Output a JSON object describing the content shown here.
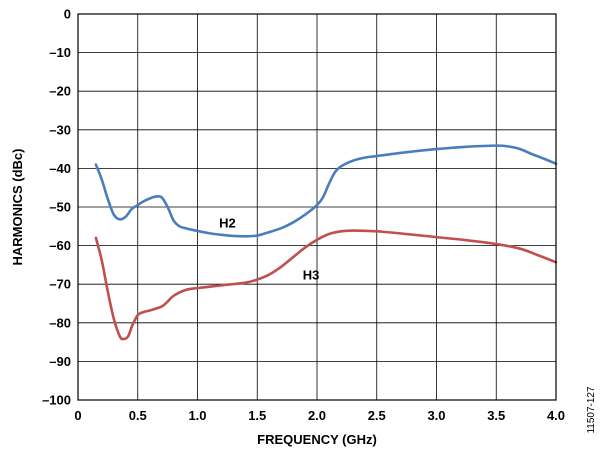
{
  "chart_data": {
    "type": "line",
    "xlabel": "FREQUENCY (GHz)",
    "ylabel": "HARMONICS (dBc)",
    "xlim": [
      0,
      4.0
    ],
    "ylim": [
      -100,
      0
    ],
    "x_ticks": [
      {
        "value": 0,
        "label": "0"
      },
      {
        "value": 0.5,
        "label": "0.5"
      },
      {
        "value": 1.0,
        "label": "1.0"
      },
      {
        "value": 1.5,
        "label": "1.5"
      },
      {
        "value": 2.0,
        "label": "2.0"
      },
      {
        "value": 2.5,
        "label": "2.5"
      },
      {
        "value": 3.0,
        "label": "3.0"
      },
      {
        "value": 3.5,
        "label": "3.5"
      },
      {
        "value": 4.0,
        "label": "4.0"
      }
    ],
    "y_ticks": [
      {
        "value": 0,
        "label": "0"
      },
      {
        "value": -10,
        "label": "–10"
      },
      {
        "value": -20,
        "label": "–20"
      },
      {
        "value": -30,
        "label": "–30"
      },
      {
        "value": -40,
        "label": "–40"
      },
      {
        "value": -50,
        "label": "–50"
      },
      {
        "value": -60,
        "label": "–60"
      },
      {
        "value": -70,
        "label": "–70"
      },
      {
        "value": -80,
        "label": "–80"
      },
      {
        "value": -90,
        "label": "–90"
      },
      {
        "value": -100,
        "label": "–100"
      }
    ],
    "grid": true,
    "legend": "none",
    "series": [
      {
        "name": "H2",
        "color": "#4a7ebb",
        "label_at": {
          "x": 1.25,
          "y": -54
        },
        "points": [
          [
            0.15,
            -39
          ],
          [
            0.2,
            -43
          ],
          [
            0.25,
            -48
          ],
          [
            0.3,
            -52
          ],
          [
            0.35,
            -53.2
          ],
          [
            0.4,
            -52.5
          ],
          [
            0.45,
            -50.5
          ],
          [
            0.5,
            -49.5
          ],
          [
            0.55,
            -48.5
          ],
          [
            0.6,
            -47.8
          ],
          [
            0.65,
            -47.3
          ],
          [
            0.7,
            -47.5
          ],
          [
            0.75,
            -50
          ],
          [
            0.8,
            -53.5
          ],
          [
            0.85,
            -55
          ],
          [
            0.9,
            -55.5
          ],
          [
            1.0,
            -56.2
          ],
          [
            1.1,
            -56.8
          ],
          [
            1.2,
            -57.2
          ],
          [
            1.3,
            -57.5
          ],
          [
            1.4,
            -57.6
          ],
          [
            1.5,
            -57.4
          ],
          [
            1.6,
            -56.5
          ],
          [
            1.7,
            -55.5
          ],
          [
            1.8,
            -54
          ],
          [
            1.9,
            -52
          ],
          [
            2.0,
            -49.5
          ],
          [
            2.05,
            -47.5
          ],
          [
            2.1,
            -44
          ],
          [
            2.15,
            -41
          ],
          [
            2.2,
            -39.5
          ],
          [
            2.3,
            -38
          ],
          [
            2.4,
            -37.2
          ],
          [
            2.5,
            -36.8
          ],
          [
            2.75,
            -35.8
          ],
          [
            3.0,
            -35
          ],
          [
            3.25,
            -34.4
          ],
          [
            3.5,
            -34.1
          ],
          [
            3.6,
            -34.3
          ],
          [
            3.7,
            -35
          ],
          [
            3.8,
            -36.3
          ],
          [
            3.9,
            -37.5
          ],
          [
            4.0,
            -38.8
          ]
        ]
      },
      {
        "name": "H3",
        "color": "#c0504d",
        "label_at": {
          "x": 1.95,
          "y": -67.5
        },
        "points": [
          [
            0.15,
            -58
          ],
          [
            0.2,
            -64
          ],
          [
            0.25,
            -72
          ],
          [
            0.3,
            -79
          ],
          [
            0.35,
            -83.5
          ],
          [
            0.38,
            -84.2
          ],
          [
            0.42,
            -83.5
          ],
          [
            0.45,
            -81
          ],
          [
            0.5,
            -78
          ],
          [
            0.55,
            -77.2
          ],
          [
            0.6,
            -76.8
          ],
          [
            0.7,
            -75.8
          ],
          [
            0.75,
            -74.5
          ],
          [
            0.8,
            -73
          ],
          [
            0.9,
            -71.5
          ],
          [
            1.0,
            -71
          ],
          [
            1.2,
            -70.3
          ],
          [
            1.4,
            -69.6
          ],
          [
            1.5,
            -68.8
          ],
          [
            1.6,
            -67.5
          ],
          [
            1.7,
            -65.5
          ],
          [
            1.8,
            -63
          ],
          [
            1.9,
            -60.5
          ],
          [
            2.0,
            -58.5
          ],
          [
            2.1,
            -57
          ],
          [
            2.2,
            -56.3
          ],
          [
            2.3,
            -56.1
          ],
          [
            2.5,
            -56.3
          ],
          [
            2.75,
            -57
          ],
          [
            3.0,
            -57.8
          ],
          [
            3.25,
            -58.6
          ],
          [
            3.5,
            -59.6
          ],
          [
            3.7,
            -60.8
          ],
          [
            3.85,
            -62.5
          ],
          [
            4.0,
            -64.3
          ]
        ]
      }
    ]
  },
  "figure_id": "11507-127"
}
